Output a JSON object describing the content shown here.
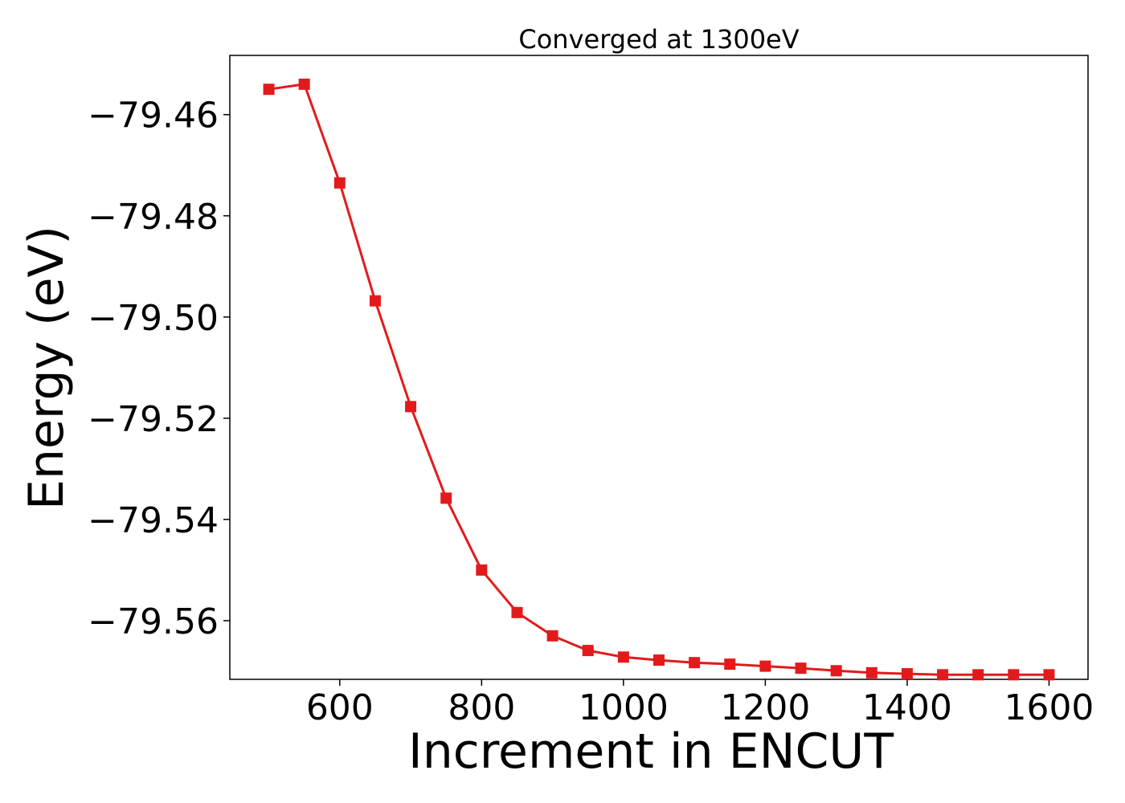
{
  "chart_data": {
    "type": "line",
    "title": "Converged at 1300eV",
    "xlabel": "Increment in ENCUT",
    "ylabel": "Energy (eV)",
    "x": [
      500,
      550,
      600,
      650,
      700,
      750,
      800,
      850,
      900,
      950,
      1000,
      1050,
      1100,
      1150,
      1200,
      1250,
      1300,
      1350,
      1400,
      1450,
      1500,
      1550,
      1600
    ],
    "series": [
      {
        "values": [
          -79.455,
          -79.454,
          -79.4735,
          -79.4968,
          -79.5177,
          -79.5358,
          -79.55,
          -79.5584,
          -79.563,
          -79.5659,
          -79.5672,
          -79.5678,
          -79.5683,
          -79.5686,
          -79.569,
          -79.5694,
          -79.5699,
          -79.5703,
          -79.5705,
          -79.5707,
          -79.5707,
          -79.5707,
          -79.5707
        ],
        "color": "#e31a1c",
        "marker": "square"
      }
    ],
    "xlim": [
      445,
      1655
    ],
    "ylim": [
      -79.5716,
      -79.4483
    ],
    "xticks": [
      600,
      800,
      1000,
      1200,
      1400,
      1600
    ],
    "xtick_labels": [
      "600",
      "800",
      "1000",
      "1200",
      "1400",
      "1600"
    ],
    "yticks": [
      -79.46,
      -79.48,
      -79.5,
      -79.52,
      -79.54,
      -79.56
    ],
    "ytick_labels": [
      "−79.46",
      "−79.48",
      "−79.50",
      "−79.52",
      "−79.54",
      "−79.56"
    ],
    "grid": false,
    "legend": "none"
  }
}
